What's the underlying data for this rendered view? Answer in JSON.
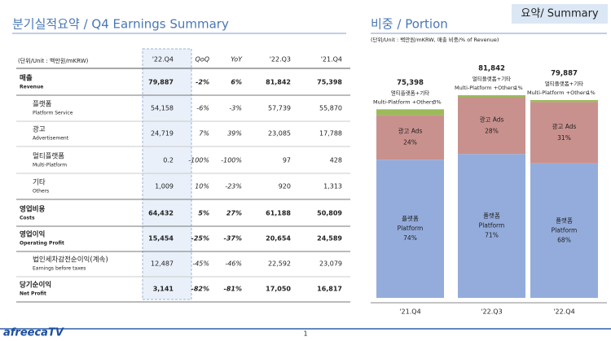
{
  "header": {
    "title_left": "분기실적요약 / Q4 Earnings Summary",
    "title_right": "비중 / Portion",
    "corner": "요약/ Summary"
  },
  "table": {
    "unit": "(단위/Unit : 백만원/mKRW)",
    "columns": [
      "'22.Q4",
      "QoQ",
      "YoY",
      "'22.Q3",
      "'21.Q4"
    ],
    "rows": [
      {
        "label_ko": "매출",
        "label_en": "Revenue",
        "bold": true,
        "values": [
          "79,887",
          "-2%",
          "6%",
          "81,842",
          "75,398"
        ]
      },
      {
        "label_ko": "플랫폼",
        "label_en": "Platform Service",
        "bold": false,
        "values": [
          "54,158",
          "-6%",
          "-3%",
          "57,739",
          "55,870"
        ]
      },
      {
        "label_ko": "광고",
        "label_en": "Advertisement",
        "bold": false,
        "values": [
          "24,719",
          "7%",
          "39%",
          "23,085",
          "17,788"
        ]
      },
      {
        "label_ko": "멀티플랫폼",
        "label_en": "Multi-Platform",
        "bold": false,
        "values": [
          "0.2",
          "-100%",
          "-100%",
          "97",
          "428"
        ]
      },
      {
        "label_ko": "기타",
        "label_en": "Others",
        "bold": false,
        "values": [
          "1,009",
          "10%",
          "-23%",
          "920",
          "1,313"
        ]
      },
      {
        "label_ko": "영업비용",
        "label_en": "Costs",
        "bold": true,
        "values": [
          "64,432",
          "5%",
          "27%",
          "61,188",
          "50,809"
        ]
      },
      {
        "label_ko": "영업이익",
        "label_en": "Operating Profit",
        "bold": true,
        "values": [
          "15,454",
          "-25%",
          "-37%",
          "20,654",
          "24,589"
        ]
      },
      {
        "label_ko": "법인세차감전순이익(계속)",
        "label_en": "Earnings before taxes",
        "bold": false,
        "values": [
          "12,487",
          "-45%",
          "-46%",
          "22,592",
          "23,079"
        ]
      },
      {
        "label_ko": "당기순이익",
        "label_en": "Net Profit",
        "bold": true,
        "values": [
          "3,141",
          "-82%",
          "-81%",
          "17,050",
          "16,817"
        ]
      }
    ]
  },
  "portion": {
    "type": "bar",
    "unit": "(단위/Unit : 백만원/mKRW, 매출 비중/% of Revenue)",
    "categories": [
      "'21.Q4",
      "'22.Q3",
      "'22.Q4"
    ],
    "totals": [
      75398,
      81842,
      79887
    ],
    "total_labels": [
      "75,398",
      "81,842",
      "79,887"
    ],
    "series": [
      {
        "name_ko": "플랫폼",
        "name": "Platform",
        "color": "#94acdb",
        "values": [
          74,
          71,
          68
        ],
        "value_labels": [
          "74%",
          "71%",
          "68%"
        ]
      },
      {
        "name": "광고 Ads",
        "color": "#c9918e",
        "values": [
          24,
          28,
          31
        ],
        "value_labels": [
          "24%",
          "28%",
          "31%"
        ]
      },
      {
        "name_ko": "멀티플랫폼+기타",
        "name": "Multi-Platform +Others",
        "color": "#9bbb59",
        "values": [
          3,
          1,
          1
        ],
        "value_labels": [
          "3%",
          "1%",
          "1%"
        ]
      }
    ]
  },
  "footer": {
    "logo": "afreecaTV",
    "page": "1"
  }
}
